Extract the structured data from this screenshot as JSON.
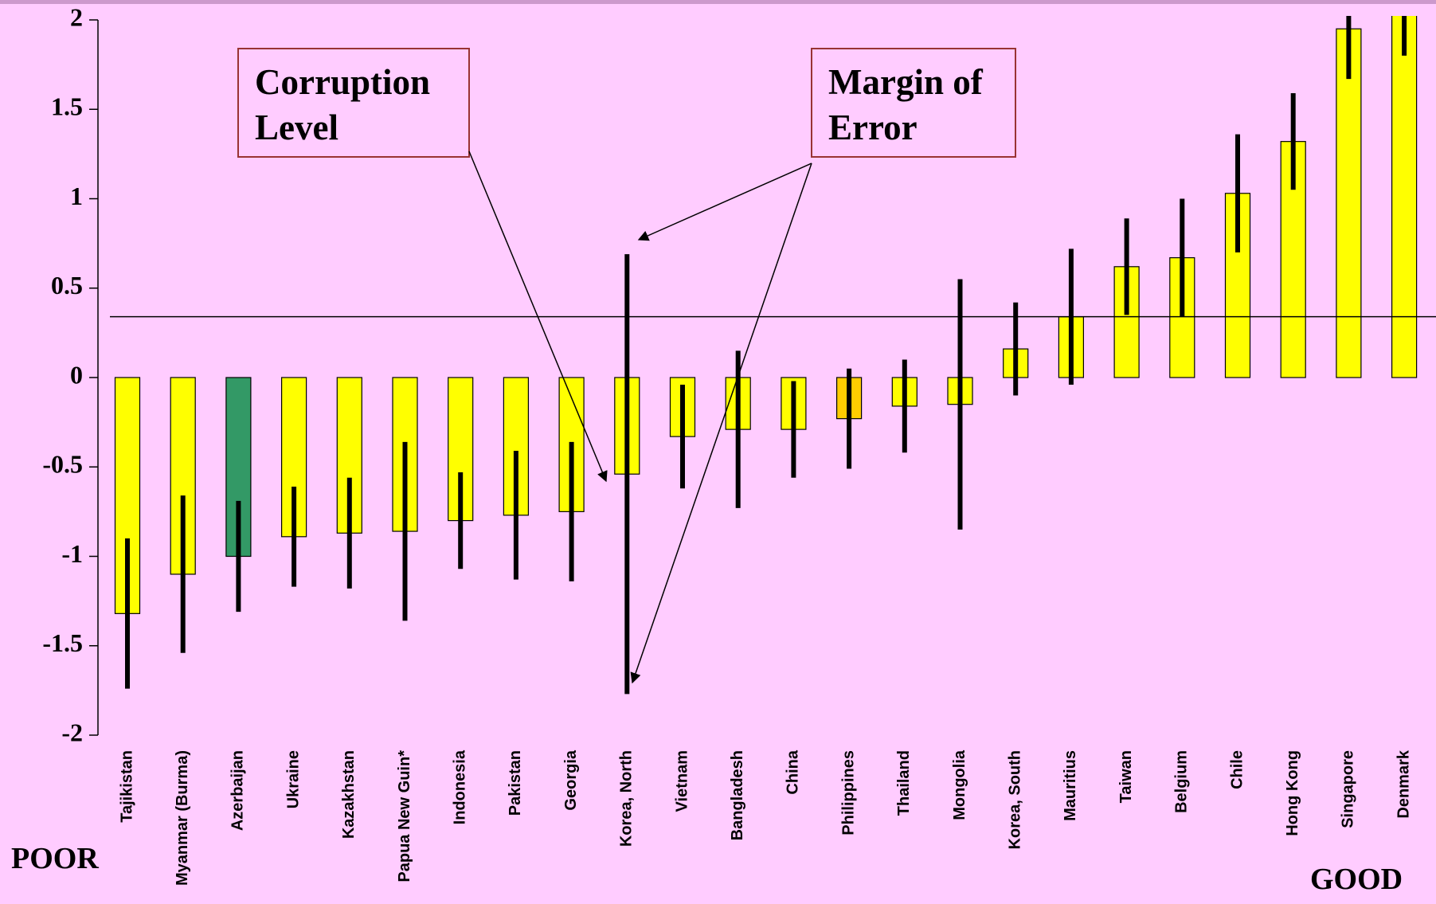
{
  "chart_data": {
    "type": "bar",
    "categories": [
      "Tajikistan",
      "Myanmar (Burma)",
      "Azerbaijan",
      "Ukraine",
      "Kazakhstan",
      "Papua New Guin*",
      "Indonesia",
      "Pakistan",
      "Georgia",
      "Korea, North",
      "Vietnam",
      "Bangladesh",
      "China",
      "Philippines",
      "Thailand",
      "Mongolia",
      "Korea, South",
      "Mauritius",
      "Taiwan",
      "Belgium",
      "Chile",
      "Hong Kong",
      "Singapore",
      "Denmark"
    ],
    "values": [
      -1.32,
      -1.1,
      -1.0,
      -0.89,
      -0.87,
      -0.86,
      -0.8,
      -0.77,
      -0.75,
      -0.54,
      -0.33,
      -0.29,
      -0.29,
      -0.23,
      -0.16,
      -0.15,
      0.16,
      0.34,
      0.62,
      0.67,
      1.03,
      1.32,
      1.95,
      2.08
    ],
    "errors": [
      0.42,
      0.44,
      0.31,
      0.28,
      0.31,
      0.5,
      0.27,
      0.36,
      0.39,
      1.23,
      0.29,
      0.44,
      0.27,
      0.28,
      0.26,
      0.7,
      0.26,
      0.38,
      0.27,
      0.33,
      0.33,
      0.27,
      0.28,
      0.28
    ],
    "colors": [
      "#ffff00",
      "#ffff00",
      "#339966",
      "#ffff00",
      "#ffff00",
      "#ffff00",
      "#ffff00",
      "#ffff00",
      "#ffff00",
      "#ffff00",
      "#ffff00",
      "#ffff00",
      "#ffff00",
      "#ffcc00",
      "#ffff00",
      "#ffff00",
      "#ffff00",
      "#ffff00",
      "#ffff00",
      "#ffff00",
      "#ffff00",
      "#ffff00",
      "#ffff00",
      "#ffff00"
    ],
    "error_color": "#000000",
    "ylim": [
      -2,
      2
    ],
    "yticks": [
      -2,
      -1.5,
      -1,
      -0.5,
      0,
      0.5,
      1,
      1.5,
      2
    ],
    "reference_line": 0.34,
    "annotations": [
      [
        "Corruption",
        "Level"
      ],
      [
        "Margin of",
        "Error"
      ]
    ],
    "left_label": "POOR",
    "right_label": "GOOD"
  }
}
